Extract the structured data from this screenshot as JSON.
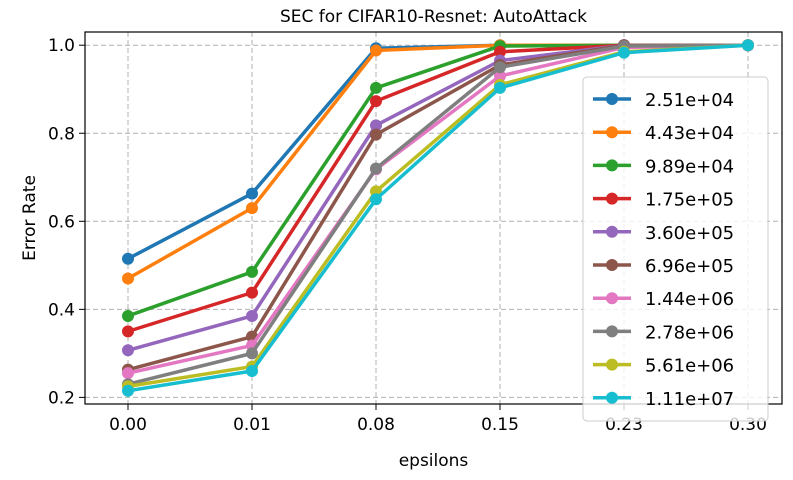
{
  "chart_data": {
    "type": "line",
    "title": "SEC for CIFAR10-Resnet: AutoAttack",
    "xlabel": "epsilons",
    "ylabel": "Error Rate",
    "categories": [
      "0.00",
      "0.01",
      "0.08",
      "0.15",
      "0.23",
      "0.30"
    ],
    "yticks": [
      "0.2",
      "0.4",
      "0.6",
      "0.8",
      "1.0"
    ],
    "ylim": [
      0.185,
      1.03
    ],
    "grid": true,
    "legend_position": "right",
    "series": [
      {
        "name": "2.51e+04",
        "color": "#1f77b4",
        "values": [
          0.515,
          0.663,
          0.993,
          1.0,
          1.0,
          1.0
        ]
      },
      {
        "name": "4.43e+04",
        "color": "#ff7f0e",
        "values": [
          0.47,
          0.63,
          0.988,
          1.0,
          1.0,
          1.0
        ]
      },
      {
        "name": "9.89e+04",
        "color": "#2ca02c",
        "values": [
          0.385,
          0.485,
          0.903,
          0.998,
          1.0,
          1.0
        ]
      },
      {
        "name": "1.75e+05",
        "color": "#d62728",
        "values": [
          0.35,
          0.438,
          0.873,
          0.985,
          1.0,
          1.0
        ]
      },
      {
        "name": "3.60e+05",
        "color": "#9467bd",
        "values": [
          0.307,
          0.385,
          0.818,
          0.965,
          1.0,
          1.0
        ]
      },
      {
        "name": "6.96e+05",
        "color": "#8c564b",
        "values": [
          0.263,
          0.338,
          0.797,
          0.955,
          1.0,
          1.0
        ]
      },
      {
        "name": "1.44e+06",
        "color": "#e377c2",
        "values": [
          0.255,
          0.318,
          0.718,
          0.93,
          0.995,
          1.0
        ]
      },
      {
        "name": "2.78e+06",
        "color": "#7f7f7f",
        "values": [
          0.23,
          0.3,
          0.72,
          0.95,
          0.998,
          1.0
        ]
      },
      {
        "name": "5.61e+06",
        "color": "#bcbd22",
        "values": [
          0.225,
          0.27,
          0.668,
          0.91,
          0.985,
          1.0
        ]
      },
      {
        "name": "1.11e+07",
        "color": "#17becf",
        "values": [
          0.215,
          0.26,
          0.65,
          0.903,
          0.983,
          1.0
        ]
      }
    ]
  }
}
